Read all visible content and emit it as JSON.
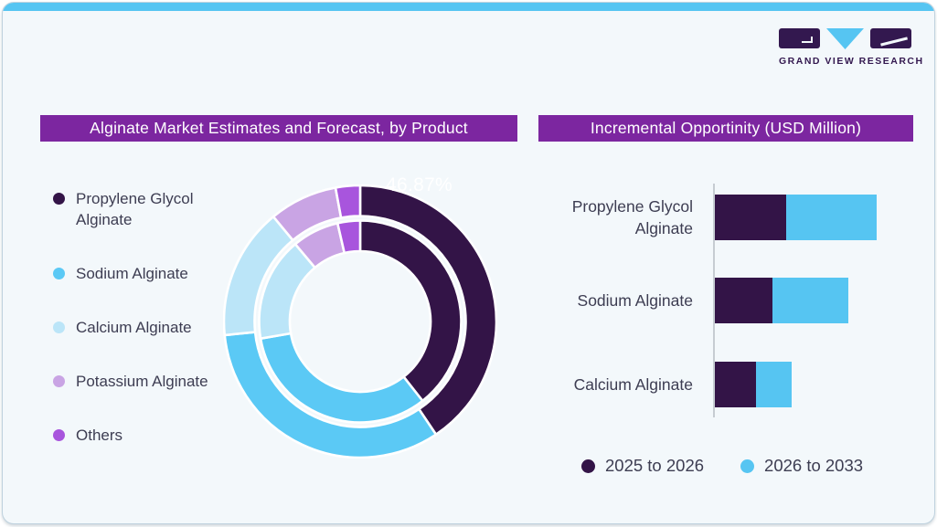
{
  "page": {
    "card_bg": "#F3F8FB",
    "accent_bar_color": "#56C5F2",
    "card_border_color": "#BFD2DE",
    "header_bg": "#7C26A0",
    "text_color": "#3D3D52"
  },
  "logo": {
    "brand": "GRAND VIEW RESEARCH",
    "dark_color": "#33184F",
    "blue_color": "#56C5F2"
  },
  "left_panel": {
    "header": "Alginate Market Estimates and Forecast, by Product",
    "donut_label": "46.87%",
    "legend": [
      {
        "label": "Propylene Glycol Alginate",
        "color": "#331447"
      },
      {
        "label": "Sodium Alginate",
        "color": "#5BC9F5"
      },
      {
        "label": "Calcium Alginate",
        "color": "#BBE5F8"
      },
      {
        "label": "Potassium Alginate",
        "color": "#C9A4E4"
      },
      {
        "label": "Others",
        "color": "#A855DD"
      }
    ]
  },
  "right_panel": {
    "header": "Incremental Opportinity (USD Million)",
    "legend": [
      {
        "label": "2025 to 2026",
        "color": "#331447"
      },
      {
        "label": "2026 to 2033",
        "color": "#56C5F2"
      }
    ]
  },
  "chart_data": [
    {
      "type": "pie",
      "subtype": "double-ring-donut",
      "title": "Alginate Market Estimates and Forecast, by Product",
      "categories": [
        "Propylene Glycol Alginate",
        "Sodium Alginate",
        "Calcium Alginate",
        "Potassium Alginate",
        "Others"
      ],
      "colors": [
        "#331447",
        "#5BC9F5",
        "#BBE5F8",
        "#C9A4E4",
        "#A855DD"
      ],
      "data_label": {
        "text": "46.87%",
        "segment": "Propylene Glycol Alginate",
        "position": "top-right of donut"
      },
      "rings": [
        {
          "name": "outer",
          "values_pct_est": [
            40.6,
            32.8,
            15.6,
            8.1,
            2.9
          ]
        },
        {
          "name": "inner",
          "values_pct_est": [
            39.4,
            32.9,
            16.6,
            7.5,
            3.6
          ]
        }
      ],
      "start_angle_deg": 0,
      "direction": "clockwise",
      "legend_position": "left",
      "separator_color": "#FFFFFF"
    },
    {
      "type": "bar",
      "orientation": "horizontal-stacked",
      "title": "Incremental Opportinity (USD Million)",
      "categories": [
        "Propylene Glycol Alginate",
        "Sodium Alginate",
        "Calcium Alginate"
      ],
      "series": [
        {
          "name": "2025 to 2026",
          "color": "#331447",
          "values": [
            78,
            63,
            45
          ]
        },
        {
          "name": "2026 to 2033",
          "color": "#56C5F2",
          "values": [
            99,
            83,
            39
          ]
        }
      ],
      "value_basis": "relative units estimated from bar lengths; axis has no tick labels",
      "legend_position": "bottom"
    }
  ]
}
